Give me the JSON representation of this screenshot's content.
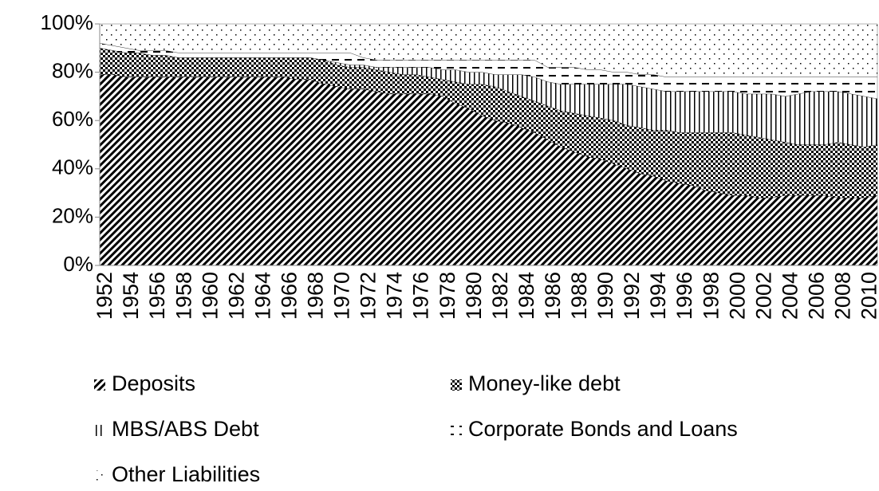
{
  "chart_data": {
    "type": "area",
    "stacked": true,
    "categories": [
      "1952",
      null,
      "1954",
      null,
      "1956",
      null,
      "1958",
      null,
      "1960",
      null,
      "1962",
      null,
      "1964",
      null,
      "1966",
      null,
      "1968",
      null,
      "1970",
      null,
      "1972",
      null,
      "1974",
      null,
      "1976",
      null,
      "1978",
      null,
      "1980",
      null,
      "1982",
      null,
      "1984",
      null,
      "1986",
      null,
      "1988",
      null,
      "1990",
      null,
      "1992",
      null,
      "1994",
      null,
      "1996",
      null,
      "1998",
      null,
      "2000",
      null,
      "2002",
      null,
      "2004",
      null,
      "2006",
      null,
      "2008",
      null,
      "2010",
      null
    ],
    "series": [
      {
        "name": "Deposits",
        "color": "#000000",
        "pattern": "diagonal",
        "values": [
          79,
          79,
          78,
          78,
          78,
          78,
          78,
          78,
          78,
          78,
          78,
          78,
          78,
          78,
          78,
          77,
          77,
          75,
          74,
          73,
          73,
          72,
          71,
          71,
          71,
          71,
          70,
          67,
          65,
          62,
          60,
          59,
          57,
          55,
          52,
          49,
          47,
          45,
          44,
          42,
          40,
          38,
          37,
          35,
          34,
          33,
          31,
          30,
          29,
          29,
          28,
          28,
          29,
          29,
          29,
          29,
          28,
          28,
          28,
          29
        ]
      },
      {
        "name": "Money-like debt",
        "color": "#000000",
        "pattern": "dots",
        "values": [
          11,
          10,
          10,
          10,
          9,
          9,
          8,
          8,
          8,
          8,
          8,
          8,
          8,
          8,
          8,
          9,
          9,
          10,
          9,
          9,
          9,
          9,
          9,
          8,
          8,
          7,
          7,
          9,
          10,
          13,
          14,
          13,
          13,
          13,
          14,
          15,
          16,
          17,
          17,
          18,
          18,
          19,
          19,
          21,
          21,
          22,
          24,
          25,
          26,
          25,
          25,
          24,
          22,
          21,
          21,
          21,
          23,
          22,
          21,
          21
        ]
      },
      {
        "name": "MBS/ABS Debt",
        "color": "#000000",
        "pattern": "vertical",
        "values": [
          0,
          0,
          0,
          0,
          0,
          0,
          0,
          0,
          0,
          0,
          0,
          0,
          0,
          0,
          0,
          0,
          0,
          0,
          1,
          1,
          1,
          1,
          2,
          3,
          3,
          4,
          4,
          5,
          5,
          5,
          5,
          7,
          9,
          10,
          10,
          11,
          12,
          13,
          14,
          15,
          17,
          17,
          17,
          16,
          17,
          17,
          17,
          17,
          17,
          17,
          18,
          19,
          19,
          21,
          22,
          22,
          21,
          21,
          21,
          19
        ]
      },
      {
        "name": "Corporate Bonds and Loans",
        "color": "#000000",
        "pattern": "dashes",
        "values": [
          2,
          2,
          2,
          1,
          2,
          2,
          2,
          2,
          2,
          2,
          2,
          2,
          2,
          2,
          2,
          2,
          2,
          3,
          4,
          5,
          3,
          3,
          3,
          3,
          3,
          3,
          4,
          4,
          5,
          5,
          6,
          6,
          6,
          7,
          6,
          7,
          7,
          6,
          6,
          5,
          5,
          5,
          6,
          6,
          6,
          6,
          6,
          6,
          6,
          7,
          7,
          7,
          8,
          7,
          6,
          6,
          6,
          7,
          8,
          9
        ]
      },
      {
        "name": "Other Liabilities",
        "color": "#000000",
        "pattern": "sparse-dots",
        "values": [
          8,
          9,
          10,
          11,
          11,
          11,
          12,
          12,
          12,
          12,
          12,
          12,
          12,
          12,
          12,
          12,
          12,
          12,
          12,
          12,
          14,
          15,
          15,
          15,
          15,
          15,
          15,
          15,
          15,
          15,
          15,
          15,
          15,
          15,
          18,
          18,
          18,
          19,
          19,
          20,
          20,
          21,
          21,
          22,
          22,
          22,
          22,
          22,
          22,
          22,
          22,
          22,
          22,
          22,
          22,
          22,
          22,
          22,
          22,
          22
        ]
      }
    ],
    "ylim": [
      0,
      100
    ],
    "yticks": [
      {
        "value": 0,
        "label": "0%"
      },
      {
        "value": 20,
        "label": "20%"
      },
      {
        "value": 40,
        "label": "40%"
      },
      {
        "value": 60,
        "label": "60%"
      },
      {
        "value": 80,
        "label": "80%"
      },
      {
        "value": 100,
        "label": "100%"
      }
    ],
    "grid": false,
    "legend": "bottom"
  }
}
